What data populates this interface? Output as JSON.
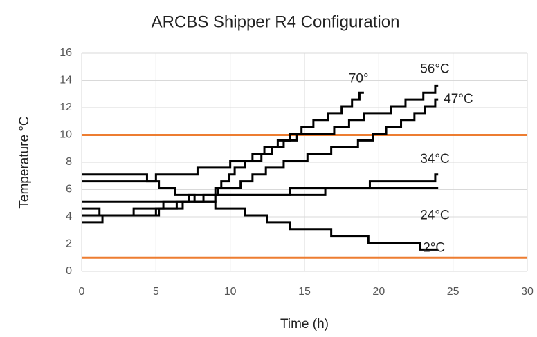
{
  "chart_data": {
    "type": "line",
    "step": true,
    "title": "ARCBS Shipper R4 Configuration",
    "xlabel": "Time (h)",
    "ylabel": "Temperature °C",
    "xlim": [
      0,
      30
    ],
    "xticks": [
      0,
      5,
      10,
      15,
      20,
      25,
      30
    ],
    "ylim": [
      0,
      16
    ],
    "yticks": [
      0,
      2,
      4,
      6,
      8,
      10,
      12,
      14,
      16
    ],
    "grid": true,
    "reference_lines": [
      {
        "value": 10,
        "color": "#ed7d31"
      },
      {
        "value": 1,
        "color": "#ed7d31"
      }
    ],
    "series": [
      {
        "name": "70°",
        "color": "#000000",
        "x": [
          0,
          4.4,
          5.0,
          7.8,
          10,
          11.5,
          12.3,
          13.2,
          14,
          14.8,
          15.6,
          16.6,
          17.5,
          18.2,
          18.7,
          19
        ],
        "values": [
          7.1,
          6.6,
          7.1,
          7.6,
          8.1,
          8.6,
          9.1,
          9.6,
          10.1,
          10.6,
          11.1,
          11.6,
          12.1,
          12.6,
          13.1,
          13.1
        ]
      },
      {
        "name": "56°C",
        "color": "#000000",
        "x": [
          0,
          5.2,
          6.3,
          7.6,
          8.2,
          9,
          9.4,
          9.9,
          10.3,
          11,
          12.1,
          12.8,
          13.6,
          14.5,
          17,
          18,
          19,
          20.8,
          21.8,
          23,
          23.8,
          24
        ],
        "values": [
          6.6,
          6.1,
          5.6,
          5.1,
          5.6,
          6.1,
          6.6,
          7.1,
          7.6,
          8.1,
          8.6,
          9.1,
          9.6,
          10.1,
          10.6,
          11.1,
          11.6,
          12.1,
          12.6,
          13.1,
          13.6,
          13.6
        ]
      },
      {
        "name": "47°C",
        "color": "#000000",
        "x": [
          0,
          1.2,
          5.2,
          6.4,
          7.2,
          9.2,
          10.7,
          11.5,
          12.4,
          13.6,
          15.2,
          16.8,
          18.6,
          19.6,
          20.5,
          21.5,
          22.4,
          23.1,
          23.8,
          24
        ],
        "values": [
          4.6,
          4.1,
          4.6,
          5.1,
          5.6,
          6.1,
          6.6,
          7.1,
          7.6,
          8.1,
          8.6,
          9.1,
          9.6,
          10.1,
          10.6,
          11.1,
          11.6,
          12.1,
          12.6,
          12.6
        ]
      },
      {
        "name": "34°C",
        "color": "#000000",
        "x": [
          0,
          1.4,
          5.0,
          5.5,
          9.0,
          14.0,
          19.4,
          23.8,
          24
        ],
        "values": [
          3.6,
          4.1,
          4.6,
          5.1,
          5.6,
          6.1,
          6.6,
          7.1,
          7.1
        ]
      },
      {
        "name": "24°C",
        "color": "#000000",
        "x": [
          0,
          3.5,
          6.8,
          9.0,
          14.2,
          16.4,
          24
        ],
        "values": [
          4.1,
          4.6,
          5.1,
          5.6,
          5.6,
          6.1,
          6.1
        ]
      },
      {
        "name": "2°C",
        "color": "#000000",
        "x": [
          0,
          9.0,
          11.0,
          12.5,
          14.0,
          16.8,
          19.3,
          22.8,
          24
        ],
        "values": [
          5.1,
          4.6,
          4.1,
          3.6,
          3.1,
          2.6,
          2.1,
          1.6,
          1.6
        ]
      }
    ]
  }
}
